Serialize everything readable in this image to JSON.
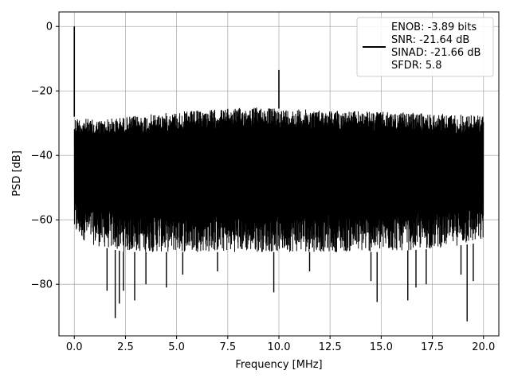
{
  "chart_data": {
    "type": "line",
    "xlabel": "Frequency [MHz]",
    "ylabel": "PSD [dB]",
    "xlim": [
      -0.75,
      20.75
    ],
    "ylim": [
      -96,
      4.5
    ],
    "grid": true,
    "x_ticks": [
      0.0,
      2.5,
      5.0,
      7.5,
      10.0,
      12.5,
      15.0,
      17.5,
      20.0
    ],
    "x_tick_labels": [
      "0.0",
      "2.5",
      "5.0",
      "7.5",
      "10.0",
      "12.5",
      "15.0",
      "17.5",
      "20.0"
    ],
    "y_ticks": [
      0,
      -20,
      -40,
      -60,
      -80
    ],
    "y_tick_labels": [
      "0",
      "−20",
      "−40",
      "−60",
      "−80"
    ],
    "legend_position": "top-right",
    "series": [
      {
        "color": "#000000",
        "peaks": [
          {
            "x": 0.0,
            "y": 0
          },
          {
            "x": 10.0,
            "y": -13.5
          }
        ],
        "noise_envelope": {
          "x": [
            0.0,
            1.0,
            2.5,
            5.0,
            7.5,
            9.0,
            10.0,
            12.5,
            15.0,
            17.5,
            20.0
          ],
          "upper": [
            -28,
            -29,
            -28,
            -26.5,
            -25.5,
            -25,
            -25.5,
            -26,
            -26.5,
            -27,
            -27.5
          ],
          "lower": [
            -65,
            -68,
            -70,
            -70,
            -70,
            -70,
            -70,
            -70,
            -70,
            -69,
            -67
          ]
        },
        "dips": [
          {
            "x": 1.6,
            "y": -82
          },
          {
            "x": 2.0,
            "y": -90.5
          },
          {
            "x": 2.2,
            "y": -86
          },
          {
            "x": 2.4,
            "y": -82
          },
          {
            "x": 2.95,
            "y": -85
          },
          {
            "x": 3.5,
            "y": -80
          },
          {
            "x": 4.5,
            "y": -81
          },
          {
            "x": 5.3,
            "y": -77
          },
          {
            "x": 7.0,
            "y": -76
          },
          {
            "x": 9.75,
            "y": -82.5
          },
          {
            "x": 11.5,
            "y": -76
          },
          {
            "x": 14.5,
            "y": -79
          },
          {
            "x": 14.8,
            "y": -85.5
          },
          {
            "x": 16.3,
            "y": -85
          },
          {
            "x": 16.7,
            "y": -81
          },
          {
            "x": 17.2,
            "y": -80
          },
          {
            "x": 19.2,
            "y": -91.5
          },
          {
            "x": 19.5,
            "y": -79
          },
          {
            "x": 18.9,
            "y": -77
          }
        ]
      }
    ],
    "legend": {
      "lines": [
        "ENOB: -3.89 bits",
        "SNR: -21.64 dB",
        "SINAD: -21.66 dB",
        "SFDR: 5.8"
      ]
    }
  }
}
